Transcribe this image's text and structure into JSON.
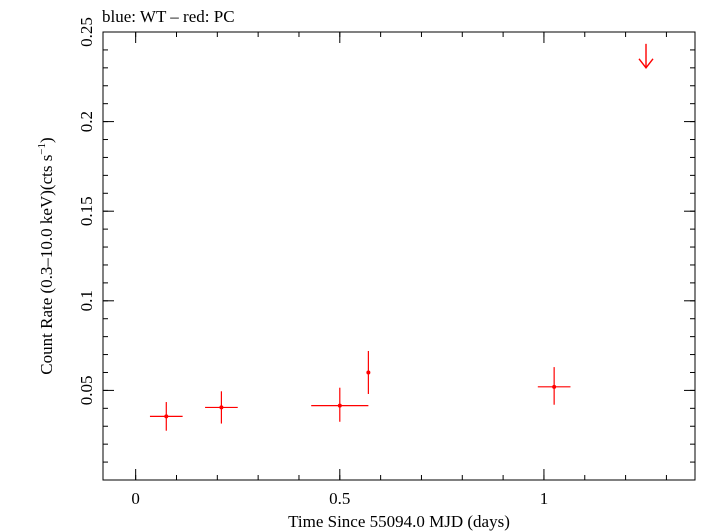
{
  "chart_data": {
    "type": "scatter",
    "title": "blue: WT – red: PC",
    "xlabel": "Time Since 55094.0 MJD (days)",
    "ylabel_parts": {
      "main": "Count Rate (0.3–10.0 keV)(cts s",
      "sup": "−1",
      "close": ")"
    },
    "xlim": [
      -0.08,
      1.37
    ],
    "ylim": [
      0.0,
      0.25
    ],
    "x_ticks": [
      {
        "value": 0,
        "label": "0"
      },
      {
        "value": 0.5,
        "label": "0.5"
      },
      {
        "value": 1,
        "label": "1"
      }
    ],
    "x_minor_step": 0.1,
    "y_ticks": [
      {
        "value": 0.05,
        "label": "0.05"
      },
      {
        "value": 0.1,
        "label": "0.1"
      },
      {
        "value": 0.15,
        "label": "0.15"
      },
      {
        "value": 0.2,
        "label": "0.2"
      },
      {
        "value": 0.25,
        "label": "0.25"
      }
    ],
    "y_minor_step": 0.01,
    "grid": false,
    "series": [
      {
        "mode": "PC",
        "color": "#ff0000",
        "points": [
          {
            "x": 0.075,
            "xerr": [
              0.04,
              0.04
            ],
            "y": 0.0355,
            "yerr": [
              0.008,
              0.008
            ]
          },
          {
            "x": 0.21,
            "xerr": [
              0.04,
              0.04
            ],
            "y": 0.0405,
            "yerr": [
              0.009,
              0.009
            ]
          },
          {
            "x": 0.5,
            "xerr": [
              0.07,
              0.07
            ],
            "y": 0.0415,
            "yerr": [
              0.009,
              0.01
            ]
          },
          {
            "x": 0.57,
            "xerr": [
              0.0,
              0.0
            ],
            "y": 0.06,
            "yerr": [
              0.012,
              0.012
            ]
          },
          {
            "x": 1.025,
            "xerr": [
              0.04,
              0.04
            ],
            "y": 0.052,
            "yerr": [
              0.01,
              0.011
            ]
          }
        ],
        "upper_limits": [
          {
            "x": 1.25,
            "y": 0.23
          }
        ]
      }
    ]
  }
}
